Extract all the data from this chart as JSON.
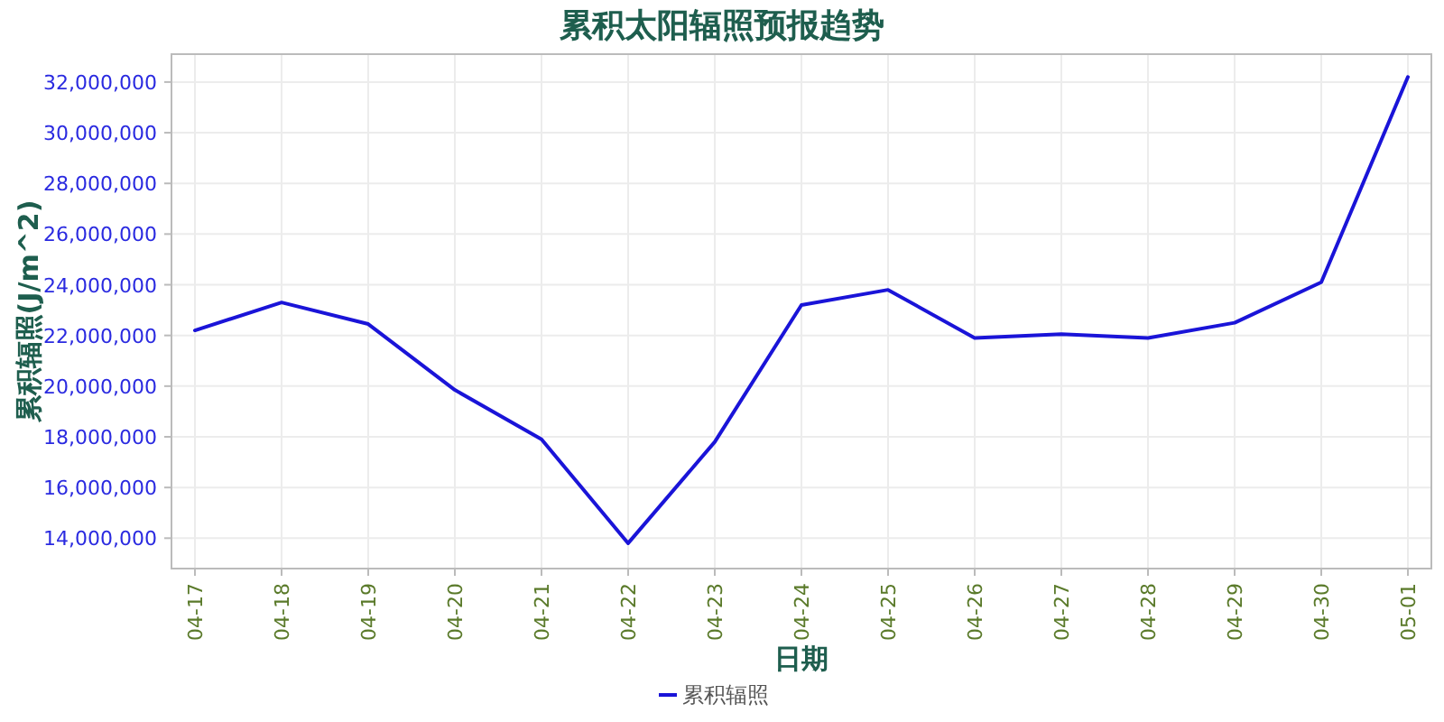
{
  "chart_data": {
    "type": "line",
    "title": "累积太阳辐照预报趋势",
    "xlabel": "日期",
    "ylabel": "累积辐照(J/m^2)",
    "categories": [
      "04-17",
      "04-18",
      "04-19",
      "04-20",
      "04-21",
      "04-22",
      "04-23",
      "04-24",
      "04-25",
      "04-26",
      "04-27",
      "04-28",
      "04-29",
      "04-30",
      "05-01"
    ],
    "series": [
      {
        "name": "累积辐照",
        "color": "#1a14d8",
        "values": [
          22200000,
          23300000,
          22450000,
          19850000,
          17900000,
          13800000,
          17800000,
          23200000,
          23800000,
          21900000,
          22050000,
          21900000,
          22500000,
          24100000,
          32200000
        ]
      }
    ],
    "ylim": [
      12800000,
      33100000
    ],
    "yticks": [
      {
        "value": 14000000,
        "label": "14,000,000"
      },
      {
        "value": 16000000,
        "label": "16,000,000"
      },
      {
        "value": 18000000,
        "label": "18,000,000"
      },
      {
        "value": 20000000,
        "label": "20,000,000"
      },
      {
        "value": 22000000,
        "label": "22,000,000"
      },
      {
        "value": 24000000,
        "label": "24,000,000"
      },
      {
        "value": 26000000,
        "label": "26,000,000"
      },
      {
        "value": 28000000,
        "label": "28,000,000"
      },
      {
        "value": 30000000,
        "label": "30,000,000"
      },
      {
        "value": 32000000,
        "label": "32,000,000"
      }
    ],
    "grid": true,
    "legend": "bottom",
    "marker": "none",
    "line_style": "solid"
  }
}
